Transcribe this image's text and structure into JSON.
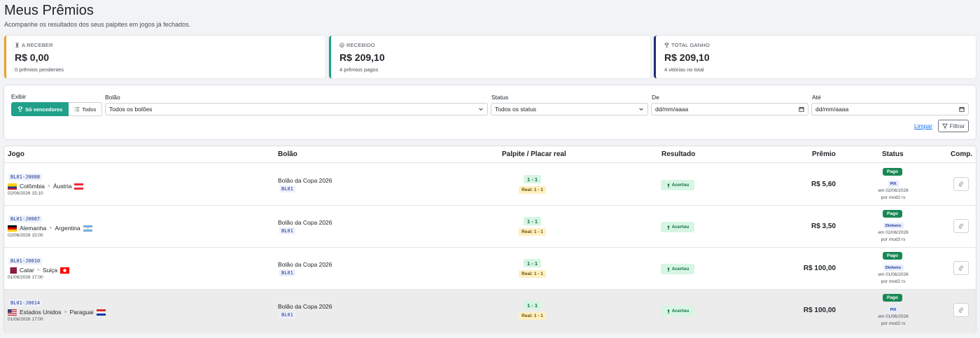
{
  "page": {
    "title": "Meus Prêmios",
    "subtitle": "Acompanhe os resultados dos seus palpites em jogos já fechados."
  },
  "stats": [
    {
      "label": "A RECEBER",
      "value": "R$ 0,00",
      "sub": "0 prêmios pendentes",
      "icon": "hourglass-icon",
      "color": "#f0a020"
    },
    {
      "label": "RECEBIDO",
      "value": "R$ 209,10",
      "sub": "4 prêmios pagos",
      "icon": "check-circle-icon",
      "color": "#20a08a"
    },
    {
      "label": "TOTAL GANHO",
      "value": "R$ 209,10",
      "sub": "4 vitórias no total",
      "icon": "trophy-icon",
      "color": "#1f2f7a"
    }
  ],
  "filters": {
    "exibir_label": "Exibir",
    "so_vencedores": "Só vencedores",
    "todos": "Todos",
    "bolao_label": "Bolão",
    "bolao_value": "Todos os bolões",
    "status_label": "Status",
    "status_value": "Todos os status",
    "de_label": "De",
    "de_value": "dd/mm/aaaa",
    "ate_label": "Até",
    "ate_value": "dd/mm/aaaa",
    "limpar": "Limpar",
    "filtrar": "Filtrar"
  },
  "table": {
    "headers": {
      "jogo": "Jogo",
      "bolao": "Bolão",
      "palpite": "Palpite / Placar real",
      "resultado": "Resultado",
      "premio": "Prêmio",
      "status": "Status",
      "comp": "Comp."
    },
    "rows": [
      {
        "code": "BL01-J0088",
        "home": "Colômbia",
        "away": "Áustria",
        "home_flag": "colombia",
        "away_flag": "austria",
        "date": "02/06/2026 15:10",
        "bolao": "Bolão da Copa 2026",
        "bolao_code": "BL01",
        "palpite": "1 - 1",
        "real": "Real: 1 - 1",
        "resultado": "Acertou",
        "premio": "R$ 5,60",
        "status": "Pago",
        "method": "PIX",
        "paid_on": "em 02/06/2026",
        "paid_by": "por mod2 rs"
      },
      {
        "code": "BL01-J0087",
        "home": "Alemanha",
        "away": "Argentina",
        "home_flag": "germany",
        "away_flag": "argentina",
        "date": "02/06/2026 15:00",
        "bolao": "Bolão da Copa 2026",
        "bolao_code": "BL01",
        "palpite": "1 - 1",
        "real": "Real: 1 - 1",
        "resultado": "Acertou",
        "premio": "R$ 3,50",
        "status": "Pago",
        "method": "Dinheiro",
        "paid_on": "em 02/06/2026",
        "paid_by": "por mod3 rs"
      },
      {
        "code": "BL01-J0010",
        "home": "Catar",
        "away": "Suiça",
        "home_flag": "qatar",
        "away_flag": "switzerland",
        "date": "01/06/2026 17:00",
        "bolao": "Bolão da Copa 2026",
        "bolao_code": "BL01",
        "palpite": "1 - 1",
        "real": "Real: 1 - 1",
        "resultado": "Acertou",
        "premio": "R$ 100,00",
        "status": "Pago",
        "method": "Dinheiro",
        "paid_on": "em 01/06/2026",
        "paid_by": "por mod2 rs"
      },
      {
        "code": "BL01-J0014",
        "home": "Estados Unidos",
        "away": "Paraguai",
        "home_flag": "usa",
        "away_flag": "paraguay",
        "date": "01/06/2026 17:00",
        "bolao": "Bolão da Copa 2026",
        "bolao_code": "BL01",
        "palpite": "1 - 1",
        "real": "Real: 1 - 1",
        "resultado": "Acertou",
        "premio": "R$ 100,00",
        "status": "Pago",
        "method": "PIX",
        "paid_on": "em 01/06/2026",
        "paid_by": "por mod2 rs"
      }
    ]
  }
}
